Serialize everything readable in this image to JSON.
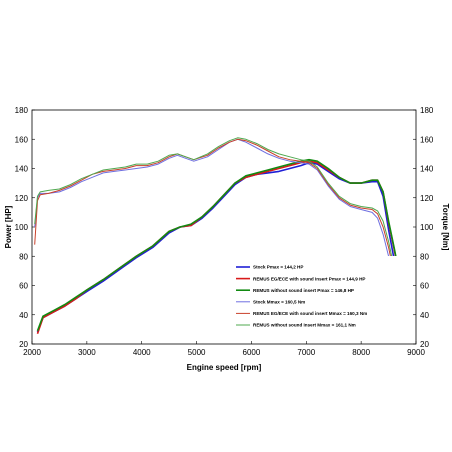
{
  "chart_data": {
    "type": "line",
    "title": "",
    "xlabel": "Engine speed [rpm]",
    "ylabel_left": "Power [HP]",
    "ylabel_right": "Torque [Nm]",
    "xlim": [
      2000,
      9000
    ],
    "ylim_left": [
      20,
      180
    ],
    "ylim_right": [
      20,
      180
    ],
    "xticks": [
      "2000",
      "3000",
      "4000",
      "5000",
      "6000",
      "7000",
      "8000",
      "9000"
    ],
    "yticks_left": [
      "20",
      "40",
      "60",
      "80",
      "100",
      "120",
      "140",
      "160",
      "180"
    ],
    "yticks_right": [
      "20",
      "40",
      "60",
      "80",
      "100",
      "120",
      "140",
      "160",
      "180"
    ],
    "grid": false,
    "legend_position": "bottom-right",
    "series": [
      {
        "name": "Stock Pmax = 144,2 HP",
        "kind": "power",
        "color": "#1f1fd6",
        "x": [
          2100,
          2200,
          2400,
          2600,
          2800,
          3000,
          3300,
          3600,
          3900,
          4200,
          4500,
          4700,
          4900,
          5100,
          5300,
          5500,
          5700,
          5900,
          6100,
          6300,
          6500,
          6700,
          6900,
          7050,
          7200,
          7400,
          7600,
          7800,
          8000,
          8200,
          8300,
          8400,
          8500,
          8600,
          8700
        ],
        "y": [
          28,
          38,
          42,
          46,
          51,
          56,
          63,
          71,
          79,
          86,
          96,
          100,
          101,
          106,
          113,
          121,
          129,
          134,
          136,
          137,
          138,
          140,
          142,
          144,
          143,
          138,
          133,
          130,
          130,
          131,
          131,
          121,
          98,
          78,
          54
        ]
      },
      {
        "name": "REMUS EG/ECE with sound insert Pmax = 144,9 HP",
        "kind": "power",
        "color": "#d81a1a",
        "x": [
          2100,
          2200,
          2400,
          2600,
          2800,
          3000,
          3300,
          3600,
          3900,
          4200,
          4500,
          4700,
          4900,
          5100,
          5300,
          5500,
          5700,
          5900,
          6100,
          6300,
          6500,
          6700,
          6900,
          7050,
          7200,
          7400,
          7600,
          7800,
          8000,
          8200,
          8300,
          8400,
          8500,
          8600,
          8700
        ],
        "y": [
          27,
          38,
          42,
          46,
          51,
          57,
          64,
          72,
          80,
          87,
          97,
          100,
          101,
          107,
          114,
          122,
          130,
          134,
          136,
          138,
          140,
          142,
          144,
          145,
          144,
          139,
          134,
          130,
          130,
          132,
          132,
          124,
          103,
          85,
          66
        ]
      },
      {
        "name": "REMUS without sound insert Pmax = 146,8 HP",
        "kind": "power",
        "color": "#128a12",
        "x": [
          2100,
          2200,
          2400,
          2600,
          2800,
          3000,
          3300,
          3600,
          3900,
          4200,
          4500,
          4700,
          4900,
          5100,
          5300,
          5500,
          5700,
          5900,
          6100,
          6300,
          6500,
          6700,
          6900,
          7050,
          7200,
          7400,
          7600,
          7800,
          8000,
          8200,
          8300,
          8400,
          8500,
          8600,
          8700
        ],
        "y": [
          29,
          39,
          43,
          47,
          52,
          57,
          64,
          72,
          80,
          87,
          97,
          100,
          102,
          107,
          114,
          122,
          130,
          135,
          137,
          139,
          141,
          143,
          145,
          146,
          145,
          140,
          134,
          130,
          130,
          132,
          132,
          124,
          104,
          86,
          67
        ]
      },
      {
        "name": "Stock Mmax = 160,5 Nm",
        "kind": "torque",
        "color": "#6f6fe0",
        "x": [
          2050,
          2100,
          2150,
          2300,
          2500,
          2700,
          2900,
          3100,
          3300,
          3500,
          3700,
          3900,
          4100,
          4300,
          4500,
          4650,
          4800,
          4950,
          5200,
          5400,
          5600,
          5750,
          5900,
          6100,
          6300,
          6500,
          6700,
          6900,
          7050,
          7200,
          7400,
          7600,
          7800,
          8000,
          8200,
          8300,
          8400,
          8500,
          8600,
          8700
        ],
        "y": [
          100,
          120,
          123,
          123,
          124,
          127,
          131,
          134,
          137,
          138,
          139,
          140,
          141,
          143,
          147,
          149,
          147,
          145,
          148,
          153,
          158,
          160,
          158,
          154,
          150,
          147,
          145,
          144,
          143,
          139,
          128,
          119,
          114,
          112,
          110,
          106,
          95,
          80,
          60,
          42
        ]
      },
      {
        "name": "REMUS EG/ECE with sound insert Mmax = 160,3 Nm",
        "kind": "torque",
        "color": "#c8402a",
        "x": [
          2050,
          2100,
          2150,
          2300,
          2500,
          2700,
          2900,
          3100,
          3300,
          3500,
          3700,
          3900,
          4100,
          4300,
          4500,
          4650,
          4800,
          4950,
          5200,
          5400,
          5600,
          5750,
          5900,
          6100,
          6300,
          6500,
          6700,
          6900,
          7050,
          7200,
          7400,
          7600,
          7800,
          8000,
          8200,
          8300,
          8400,
          8500,
          8600,
          8700
        ],
        "y": [
          88,
          118,
          122,
          123,
          125,
          128,
          132,
          136,
          138,
          139,
          140,
          142,
          142,
          144,
          148,
          150,
          148,
          146,
          149,
          154,
          158,
          160,
          159,
          156,
          152,
          148,
          146,
          145,
          144,
          140,
          129,
          120,
          115,
          113,
          112,
          109,
          100,
          86,
          68,
          50
        ]
      },
      {
        "name": "REMUS without sound insert Mmax = 161,1 Nm",
        "kind": "torque",
        "color": "#4fa84f",
        "x": [
          2050,
          2100,
          2150,
          2300,
          2500,
          2700,
          2900,
          3100,
          3300,
          3500,
          3700,
          3900,
          4100,
          4300,
          4500,
          4650,
          4800,
          4950,
          5200,
          5400,
          5600,
          5750,
          5900,
          6100,
          6300,
          6500,
          6700,
          6900,
          7050,
          7200,
          7400,
          7600,
          7800,
          8000,
          8200,
          8300,
          8400,
          8500,
          8600,
          8700
        ],
        "y": [
          102,
          121,
          124,
          125,
          126,
          129,
          133,
          136,
          139,
          140,
          141,
          143,
          143,
          145,
          149,
          150,
          148,
          146,
          150,
          155,
          159,
          161,
          160,
          157,
          153,
          150,
          148,
          146,
          145,
          141,
          130,
          121,
          116,
          114,
          113,
          111,
          104,
          90,
          72,
          56
        ]
      }
    ]
  }
}
